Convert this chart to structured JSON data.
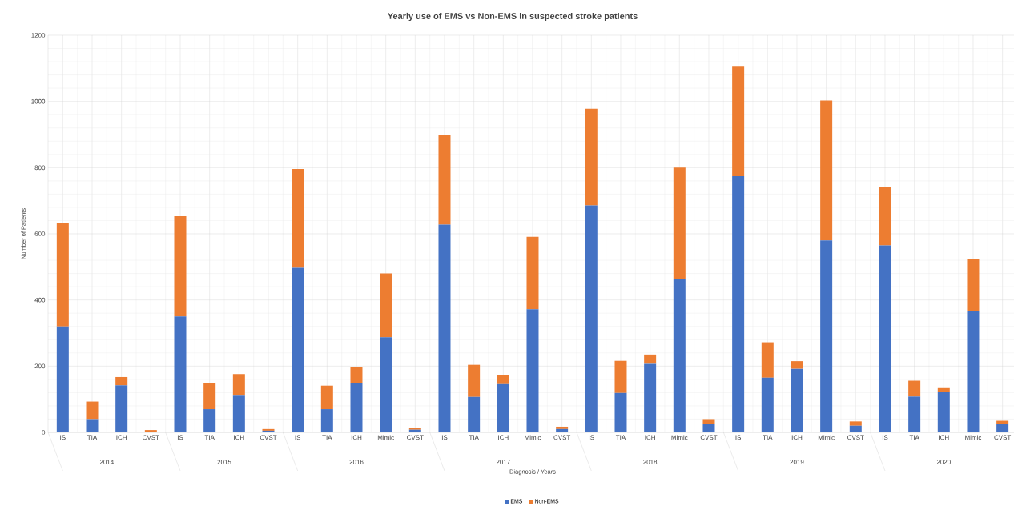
{
  "chart_data": {
    "type": "bar",
    "stacked": true,
    "title": "Yearly use of EMS vs Non-EMS in suspected stroke patients",
    "xlabel": "Diagnosis / Years",
    "ylabel": "Number of Patients",
    "categories": [
      "IS",
      "TIA",
      "ICH",
      "CVST",
      "IS",
      "TIA",
      "ICH",
      "CVST",
      "IS",
      "TIA",
      "ICH",
      "Mimic",
      "CVST",
      "IS",
      "TIA",
      "ICH",
      "Mimic",
      "CVST",
      "IS",
      "TIA",
      "ICH",
      "Mimic",
      "CVST",
      "IS",
      "TIA",
      "ICH",
      "Mimic",
      "CVST",
      "IS",
      "TIA",
      "ICH",
      "Mimic",
      "CVST"
    ],
    "annotations": [
      "2014",
      "2015",
      "2016",
      "2017",
      "2018",
      "2019",
      "2020"
    ],
    "series": [
      {
        "name": "EMS",
        "color": "#4472c4",
        "values": [
          320,
          40,
          142,
          2,
          350,
          70,
          113,
          5,
          497,
          70,
          150,
          287,
          8,
          628,
          107,
          148,
          372,
          10,
          686,
          119,
          207,
          463,
          25,
          774,
          165,
          192,
          580,
          20,
          565,
          108,
          121,
          366,
          26
        ]
      },
      {
        "name": "Non-EMS",
        "color": "#ed7d31",
        "values": [
          314,
          53,
          25,
          5,
          303,
          80,
          63,
          5,
          299,
          71,
          48,
          193,
          5,
          270,
          97,
          25,
          219,
          7,
          292,
          97,
          28,
          337,
          15,
          331,
          107,
          23,
          423,
          13,
          177,
          48,
          15,
          159,
          9
        ]
      }
    ],
    "ylim": [
      0,
      1200
    ],
    "yticks": [
      0,
      200,
      400,
      600,
      800,
      1000,
      1200
    ],
    "grid": true,
    "legend": "bottom"
  }
}
